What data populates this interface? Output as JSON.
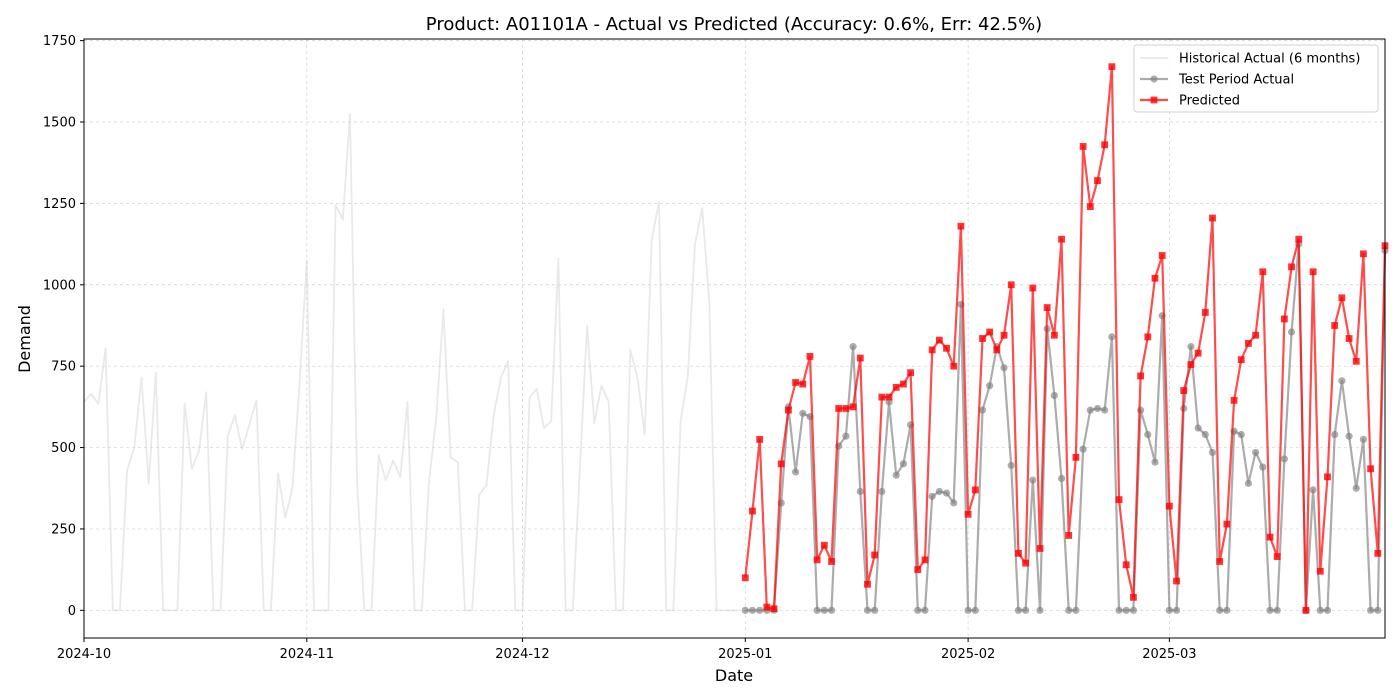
{
  "chart_data": {
    "type": "line",
    "title": "Product: A01101A - Actual vs Predicted (Accuracy: 0.6%, Err: 42.5%)",
    "xlabel": "Date",
    "ylabel": "Demand",
    "xlim": [
      "2024-10-01",
      "2025-03-31"
    ],
    "ylim": [
      -85,
      1755
    ],
    "xticks": [
      "2024-10",
      "2024-11",
      "2024-12",
      "2025-01",
      "2025-02",
      "2025-03"
    ],
    "yticks": [
      0,
      250,
      500,
      750,
      1000,
      1250,
      1500,
      1750
    ],
    "grid": true,
    "legend_position": "top-right",
    "series": [
      {
        "name": "Historical Actual (6 months)",
        "color": "#d3d3d3",
        "marker": "none",
        "x": [
          "2024-10-01",
          "2024-10-02",
          "2024-10-03",
          "2024-10-04",
          "2024-10-05",
          "2024-10-06",
          "2024-10-07",
          "2024-10-08",
          "2024-10-09",
          "2024-10-10",
          "2024-10-11",
          "2024-10-12",
          "2024-10-13",
          "2024-10-14",
          "2024-10-15",
          "2024-10-16",
          "2024-10-17",
          "2024-10-18",
          "2024-10-19",
          "2024-10-20",
          "2024-10-21",
          "2024-10-22",
          "2024-10-23",
          "2024-10-24",
          "2024-10-25",
          "2024-10-26",
          "2024-10-27",
          "2024-10-28",
          "2024-10-29",
          "2024-10-30",
          "2024-10-31",
          "2024-11-01",
          "2024-11-02",
          "2024-11-03",
          "2024-11-04",
          "2024-11-05",
          "2024-11-06",
          "2024-11-07",
          "2024-11-08",
          "2024-11-09",
          "2024-11-10",
          "2024-11-11",
          "2024-11-12",
          "2024-11-13",
          "2024-11-14",
          "2024-11-15",
          "2024-11-16",
          "2024-11-17",
          "2024-11-18",
          "2024-11-19",
          "2024-11-20",
          "2024-11-21",
          "2024-11-22",
          "2024-11-23",
          "2024-11-24",
          "2024-11-25",
          "2024-11-26",
          "2024-11-27",
          "2024-11-28",
          "2024-11-29",
          "2024-11-30",
          "2024-12-01",
          "2024-12-02",
          "2024-12-03",
          "2024-12-04",
          "2024-12-05",
          "2024-12-06",
          "2024-12-07",
          "2024-12-08",
          "2024-12-09",
          "2024-12-10",
          "2024-12-11",
          "2024-12-12",
          "2024-12-13",
          "2024-12-14",
          "2024-12-15",
          "2024-12-16",
          "2024-12-17",
          "2024-12-18",
          "2024-12-19",
          "2024-12-20",
          "2024-12-21",
          "2024-12-22",
          "2024-12-23",
          "2024-12-24",
          "2024-12-25",
          "2024-12-26",
          "2024-12-27",
          "2024-12-28",
          "2024-12-29",
          "2024-12-30",
          "2024-12-31"
        ],
        "values": [
          640,
          665,
          635,
          805,
          0,
          0,
          430,
          500,
          715,
          390,
          730,
          0,
          0,
          0,
          635,
          435,
          490,
          670,
          0,
          0,
          535,
          600,
          495,
          570,
          645,
          0,
          0,
          420,
          285,
          375,
          700,
          1075,
          0,
          0,
          0,
          1245,
          1200,
          1525,
          395,
          0,
          0,
          475,
          400,
          460,
          410,
          640,
          0,
          0,
          395,
          590,
          925,
          470,
          455,
          0,
          0,
          355,
          385,
          600,
          715,
          765,
          0,
          0,
          655,
          680,
          560,
          580,
          1080,
          0,
          0,
          445,
          875,
          575,
          690,
          640,
          0,
          0,
          800,
          715,
          540,
          1140,
          1255,
          0,
          0,
          580,
          720,
          1125,
          1235,
          945,
          0,
          0,
          0,
          0
        ]
      },
      {
        "name": "Test Period Actual",
        "color": "#808080",
        "marker": "circle",
        "x": [
          "2025-01-01",
          "2025-01-02",
          "2025-01-03",
          "2025-01-04",
          "2025-01-05",
          "2025-01-06",
          "2025-01-07",
          "2025-01-08",
          "2025-01-09",
          "2025-01-10",
          "2025-01-11",
          "2025-01-12",
          "2025-01-13",
          "2025-01-14",
          "2025-01-15",
          "2025-01-16",
          "2025-01-17",
          "2025-01-18",
          "2025-01-19",
          "2025-01-20",
          "2025-01-21",
          "2025-01-22",
          "2025-01-23",
          "2025-01-24",
          "2025-01-25",
          "2025-01-26",
          "2025-01-27",
          "2025-01-28",
          "2025-01-29",
          "2025-01-30",
          "2025-01-31",
          "2025-02-01",
          "2025-02-02",
          "2025-02-03",
          "2025-02-04",
          "2025-02-05",
          "2025-02-06",
          "2025-02-07",
          "2025-02-08",
          "2025-02-09",
          "2025-02-10",
          "2025-02-11",
          "2025-02-12",
          "2025-02-13",
          "2025-02-14",
          "2025-02-15",
          "2025-02-16",
          "2025-02-17",
          "2025-02-18",
          "2025-02-19",
          "2025-02-20",
          "2025-02-21",
          "2025-02-22",
          "2025-02-23",
          "2025-02-24",
          "2025-02-25",
          "2025-02-26",
          "2025-02-27",
          "2025-02-28",
          "2025-03-01",
          "2025-03-02",
          "2025-03-03",
          "2025-03-04",
          "2025-03-05",
          "2025-03-06",
          "2025-03-07",
          "2025-03-08",
          "2025-03-09",
          "2025-03-10",
          "2025-03-11",
          "2025-03-12",
          "2025-03-13",
          "2025-03-14",
          "2025-03-15",
          "2025-03-16",
          "2025-03-17",
          "2025-03-18",
          "2025-03-19",
          "2025-03-20",
          "2025-03-21",
          "2025-03-22",
          "2025-03-23",
          "2025-03-24",
          "2025-03-25",
          "2025-03-26",
          "2025-03-27",
          "2025-03-28",
          "2025-03-29",
          "2025-03-30",
          "2025-03-31"
        ],
        "values": [
          0,
          0,
          0,
          0,
          0,
          330,
          625,
          425,
          605,
          595,
          0,
          0,
          0,
          505,
          535,
          810,
          365,
          0,
          0,
          365,
          640,
          415,
          450,
          570,
          0,
          0,
          350,
          365,
          360,
          330,
          940,
          0,
          0,
          615,
          690,
          810,
          745,
          445,
          0,
          0,
          400,
          0,
          865,
          660,
          405,
          0,
          0,
          495,
          615,
          620,
          615,
          840,
          0,
          0,
          0,
          615,
          540,
          455,
          905,
          0,
          0,
          620,
          810,
          560,
          540,
          485,
          0,
          0,
          550,
          540,
          390,
          485,
          440,
          0,
          0,
          465,
          855,
          1125,
          0,
          370,
          0,
          0,
          540,
          705,
          535,
          375,
          525,
          0,
          0,
          1105
        ]
      },
      {
        "name": "Predicted",
        "color": "#ff0000",
        "marker": "square",
        "x": [
          "2025-01-01",
          "2025-01-02",
          "2025-01-03",
          "2025-01-04",
          "2025-01-05",
          "2025-01-06",
          "2025-01-07",
          "2025-01-08",
          "2025-01-09",
          "2025-01-10",
          "2025-01-11",
          "2025-01-12",
          "2025-01-13",
          "2025-01-14",
          "2025-01-15",
          "2025-01-16",
          "2025-01-17",
          "2025-01-18",
          "2025-01-19",
          "2025-01-20",
          "2025-01-21",
          "2025-01-22",
          "2025-01-23",
          "2025-01-24",
          "2025-01-25",
          "2025-01-26",
          "2025-01-27",
          "2025-01-28",
          "2025-01-29",
          "2025-01-30",
          "2025-01-31",
          "2025-02-01",
          "2025-02-02",
          "2025-02-03",
          "2025-02-04",
          "2025-02-05",
          "2025-02-06",
          "2025-02-07",
          "2025-02-08",
          "2025-02-09",
          "2025-02-10",
          "2025-02-11",
          "2025-02-12",
          "2025-02-13",
          "2025-02-14",
          "2025-02-15",
          "2025-02-16",
          "2025-02-17",
          "2025-02-18",
          "2025-02-19",
          "2025-02-20",
          "2025-02-21",
          "2025-02-22",
          "2025-02-23",
          "2025-02-24",
          "2025-02-25",
          "2025-02-26",
          "2025-02-27",
          "2025-02-28",
          "2025-03-01",
          "2025-03-02",
          "2025-03-03",
          "2025-03-04",
          "2025-03-05",
          "2025-03-06",
          "2025-03-07",
          "2025-03-08",
          "2025-03-09",
          "2025-03-10",
          "2025-03-11",
          "2025-03-12",
          "2025-03-13",
          "2025-03-14",
          "2025-03-15",
          "2025-03-16",
          "2025-03-17",
          "2025-03-18",
          "2025-03-19",
          "2025-03-20",
          "2025-03-21",
          "2025-03-22",
          "2025-03-23",
          "2025-03-24",
          "2025-03-25",
          "2025-03-26",
          "2025-03-27",
          "2025-03-28",
          "2025-03-29",
          "2025-03-30",
          "2025-03-31"
        ],
        "values": [
          100,
          305,
          525,
          10,
          5,
          450,
          615,
          700,
          695,
          780,
          155,
          200,
          150,
          620,
          620,
          625,
          775,
          80,
          170,
          655,
          655,
          685,
          695,
          730,
          125,
          155,
          800,
          830,
          805,
          750,
          1180,
          295,
          370,
          835,
          855,
          800,
          845,
          1000,
          175,
          145,
          990,
          190,
          930,
          845,
          1140,
          230,
          470,
          1425,
          1240,
          1320,
          1430,
          1670,
          340,
          140,
          40,
          720,
          840,
          1020,
          1090,
          320,
          90,
          675,
          755,
          790,
          915,
          1205,
          150,
          265,
          645,
          770,
          820,
          845,
          1040,
          225,
          165,
          895,
          1055,
          1140,
          0,
          1040,
          120,
          410,
          875,
          960,
          835,
          765,
          1095,
          435,
          175,
          1120
        ]
      }
    ]
  }
}
